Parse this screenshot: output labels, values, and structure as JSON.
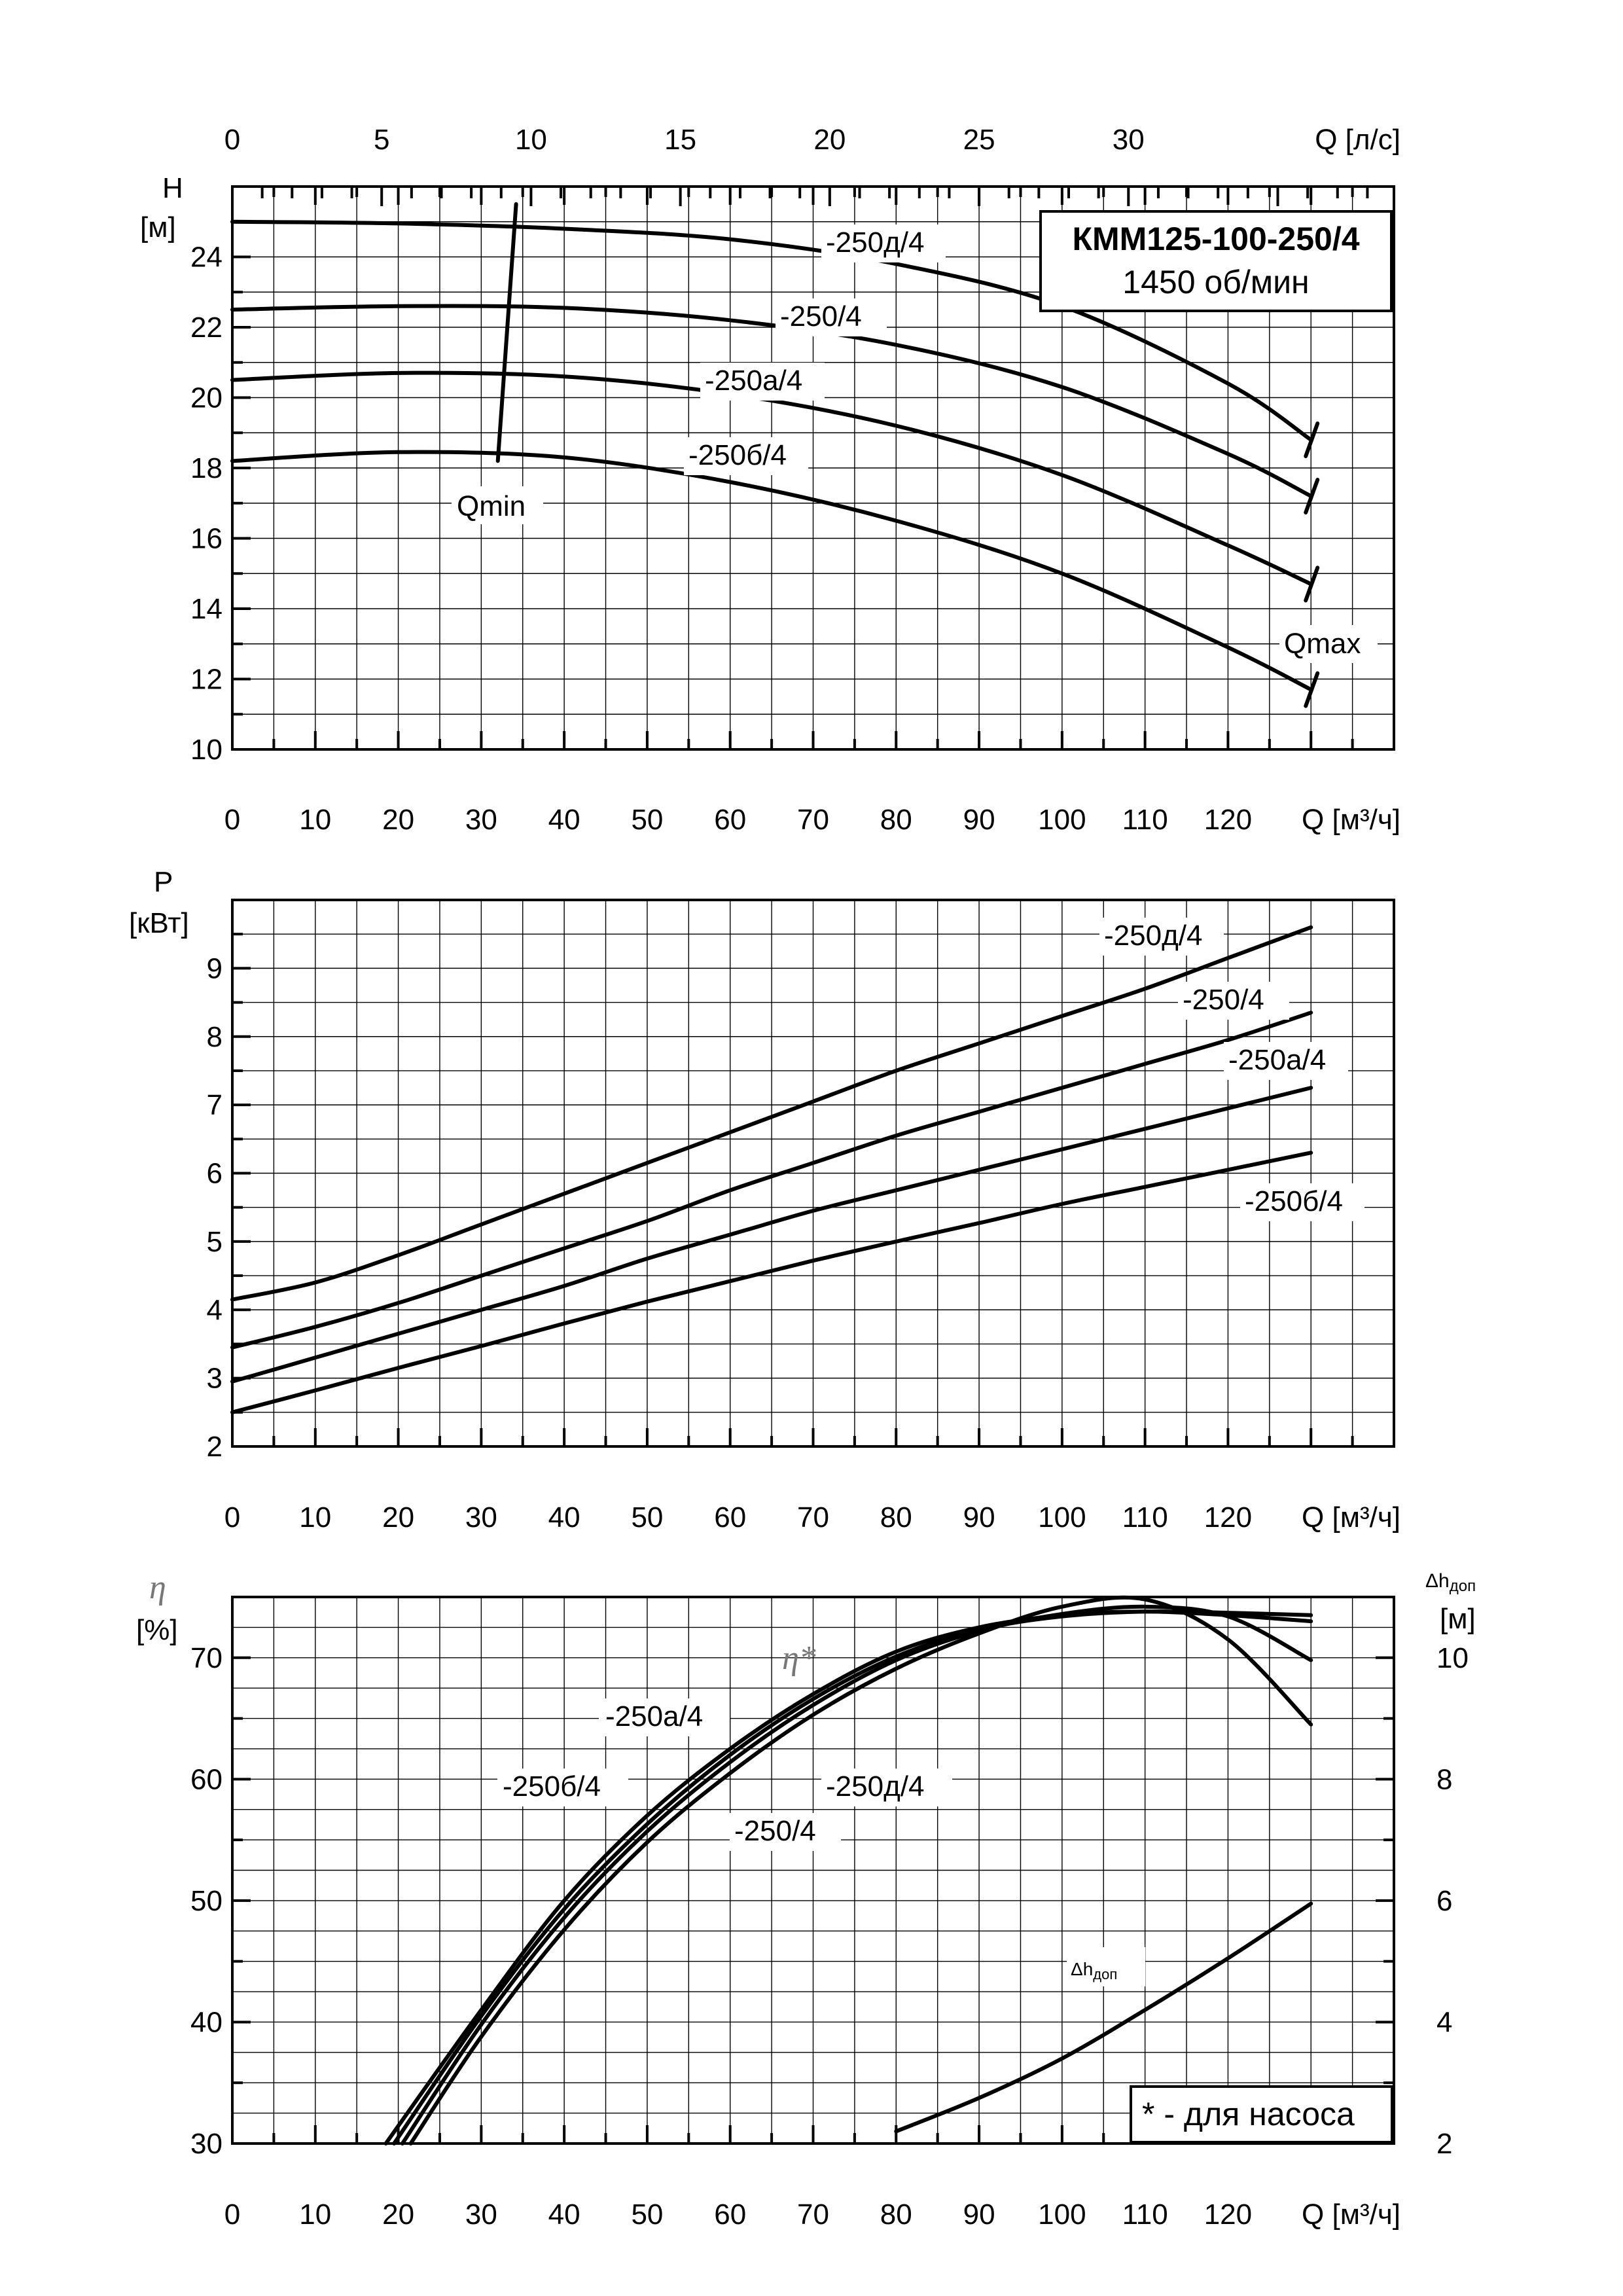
{
  "title_box": {
    "model": "КММ125-100-250/4",
    "speed": "1450 об/мин"
  },
  "note": "* - для насоса",
  "chart_data": [
    {
      "id": "head",
      "type": "line",
      "title": "",
      "xlabel": "Q [м³/ч]",
      "x2label": "Q [л/с]",
      "ylabel_line1": "H",
      "ylabel_line2": "[м]",
      "xlim": [
        0,
        140
      ],
      "x2lim": [
        0,
        38.89
      ],
      "ylim": [
        10,
        26
      ],
      "x_ticks": [
        "0",
        "10",
        "20",
        "30",
        "40",
        "50",
        "60",
        "70",
        "80",
        "90",
        "100",
        "110",
        "120"
      ],
      "x2_ticks": [
        "0",
        "5",
        "10",
        "15",
        "20",
        "25",
        "30"
      ],
      "y_ticks": [
        "10",
        "12",
        "14",
        "16",
        "18",
        "20",
        "22",
        "24"
      ],
      "grid": true,
      "series": [
        {
          "name": "-250д/4",
          "x": [
            0,
            20,
            40,
            60,
            80,
            100,
            120,
            130
          ],
          "y": [
            25.0,
            24.95,
            24.8,
            24.5,
            23.8,
            22.6,
            20.4,
            18.8
          ]
        },
        {
          "name": "-250/4",
          "x": [
            0,
            20,
            40,
            60,
            80,
            100,
            120,
            130
          ],
          "y": [
            22.5,
            22.6,
            22.55,
            22.2,
            21.5,
            20.3,
            18.4,
            17.2
          ]
        },
        {
          "name": "-250а/4",
          "x": [
            0,
            20,
            40,
            60,
            80,
            100,
            120,
            130
          ],
          "y": [
            20.5,
            20.7,
            20.6,
            20.1,
            19.2,
            17.8,
            15.8,
            14.7
          ]
        },
        {
          "name": "-250б/4",
          "x": [
            0,
            20,
            40,
            60,
            80,
            100,
            120,
            130
          ],
          "y": [
            18.2,
            18.45,
            18.3,
            17.6,
            16.5,
            15.0,
            12.9,
            11.7
          ]
        }
      ],
      "annotations": [
        {
          "text": "Qmin",
          "kind": "limit-line",
          "x": [
            32,
            34.2
          ],
          "y": [
            18.2,
            25.5
          ]
        },
        {
          "text": "Qmax",
          "kind": "end-marks",
          "x": 130
        }
      ]
    },
    {
      "id": "power",
      "type": "line",
      "title": "",
      "xlabel": "Q [м³/ч]",
      "ylabel_line1": "P",
      "ylabel_line2": "[кВт]",
      "xlim": [
        0,
        140
      ],
      "ylim": [
        2,
        10
      ],
      "x_ticks": [
        "0",
        "10",
        "20",
        "30",
        "40",
        "50",
        "60",
        "70",
        "80",
        "90",
        "100",
        "110",
        "120"
      ],
      "y_ticks": [
        "2",
        "3",
        "4",
        "5",
        "6",
        "7",
        "8",
        "9"
      ],
      "grid": true,
      "series": [
        {
          "name": "-250д/4",
          "x": [
            0,
            10,
            20,
            30,
            40,
            50,
            60,
            70,
            80,
            90,
            100,
            110,
            120,
            130
          ],
          "y": [
            4.15,
            4.4,
            4.8,
            5.25,
            5.7,
            6.15,
            6.6,
            7.05,
            7.5,
            7.9,
            8.3,
            8.7,
            9.15,
            9.6
          ]
        },
        {
          "name": "-250/4",
          "x": [
            0,
            10,
            20,
            30,
            40,
            50,
            60,
            70,
            80,
            90,
            100,
            110,
            120,
            130
          ],
          "y": [
            3.45,
            3.75,
            4.1,
            4.5,
            4.9,
            5.3,
            5.75,
            6.15,
            6.55,
            6.9,
            7.25,
            7.6,
            7.95,
            8.35
          ]
        },
        {
          "name": "-250а/4",
          "x": [
            0,
            10,
            20,
            30,
            40,
            50,
            60,
            70,
            80,
            90,
            100,
            110,
            120,
            130
          ],
          "y": [
            2.95,
            3.3,
            3.65,
            4.0,
            4.35,
            4.75,
            5.1,
            5.45,
            5.75,
            6.05,
            6.35,
            6.65,
            6.95,
            7.25
          ]
        },
        {
          "name": "-250б/4",
          "x": [
            0,
            10,
            20,
            30,
            40,
            50,
            60,
            70,
            80,
            90,
            100,
            110,
            120,
            130
          ],
          "y": [
            2.5,
            2.82,
            3.15,
            3.47,
            3.8,
            4.12,
            4.42,
            4.72,
            5.0,
            5.27,
            5.55,
            5.8,
            6.05,
            6.3
          ]
        }
      ]
    },
    {
      "id": "efficiency",
      "type": "line",
      "title": "",
      "xlabel": "Q [м³/ч]",
      "ylabel_line1": "η",
      "ylabel_line2": "[%]",
      "y2label_line1": "Δh",
      "y2label_sub": "доп",
      "y2label_line2": "[м]",
      "xlim": [
        0,
        140
      ],
      "ylim": [
        30,
        75
      ],
      "y2lim": [
        2,
        11
      ],
      "x_ticks": [
        "0",
        "10",
        "20",
        "30",
        "40",
        "50",
        "60",
        "70",
        "80",
        "90",
        "100",
        "110",
        "120"
      ],
      "y_ticks": [
        "30",
        "40",
        "50",
        "60",
        "70"
      ],
      "y2_ticks": [
        "2",
        "4",
        "6",
        "8",
        "10"
      ],
      "grid": true,
      "eta_label": "η*",
      "series": [
        {
          "name": "-250б/4",
          "x": [
            18.5,
            30,
            40,
            50,
            60,
            70,
            80,
            90,
            100,
            110,
            120,
            130
          ],
          "y": [
            30,
            41,
            50,
            57,
            62.5,
            67,
            70.5,
            72.5,
            73.5,
            73.8,
            73.5,
            73.0
          ]
        },
        {
          "name": "-250а/4",
          "x": [
            19.5,
            30,
            40,
            50,
            60,
            70,
            80,
            90,
            100,
            110,
            120,
            130
          ],
          "y": [
            30,
            40.5,
            49.3,
            56.3,
            62,
            66.6,
            70.1,
            72.3,
            73.4,
            73.8,
            73.7,
            73.5
          ]
        },
        {
          "name": "-250/4",
          "x": [
            20.5,
            30,
            40,
            50,
            60,
            70,
            80,
            90,
            100,
            110,
            120,
            130
          ],
          "y": [
            30,
            39.8,
            48.6,
            55.7,
            61.4,
            66.1,
            69.8,
            72.2,
            73.6,
            74.2,
            73.4,
            69.8
          ]
        },
        {
          "name": "-250д/4",
          "x": [
            21.5,
            30,
            40,
            50,
            60,
            70,
            80,
            90,
            100,
            110,
            120,
            130
          ],
          "y": [
            30,
            38.8,
            47.6,
            54.8,
            60.5,
            65.3,
            69.1,
            72.0,
            74.2,
            74.8,
            71.5,
            64.5
          ]
        },
        {
          "name": "Δhдоп",
          "axis": "y2",
          "x": [
            80,
            90,
            100,
            110,
            120,
            130
          ],
          "y": [
            2.2,
            2.75,
            3.4,
            4.2,
            5.05,
            5.95
          ]
        }
      ]
    }
  ]
}
